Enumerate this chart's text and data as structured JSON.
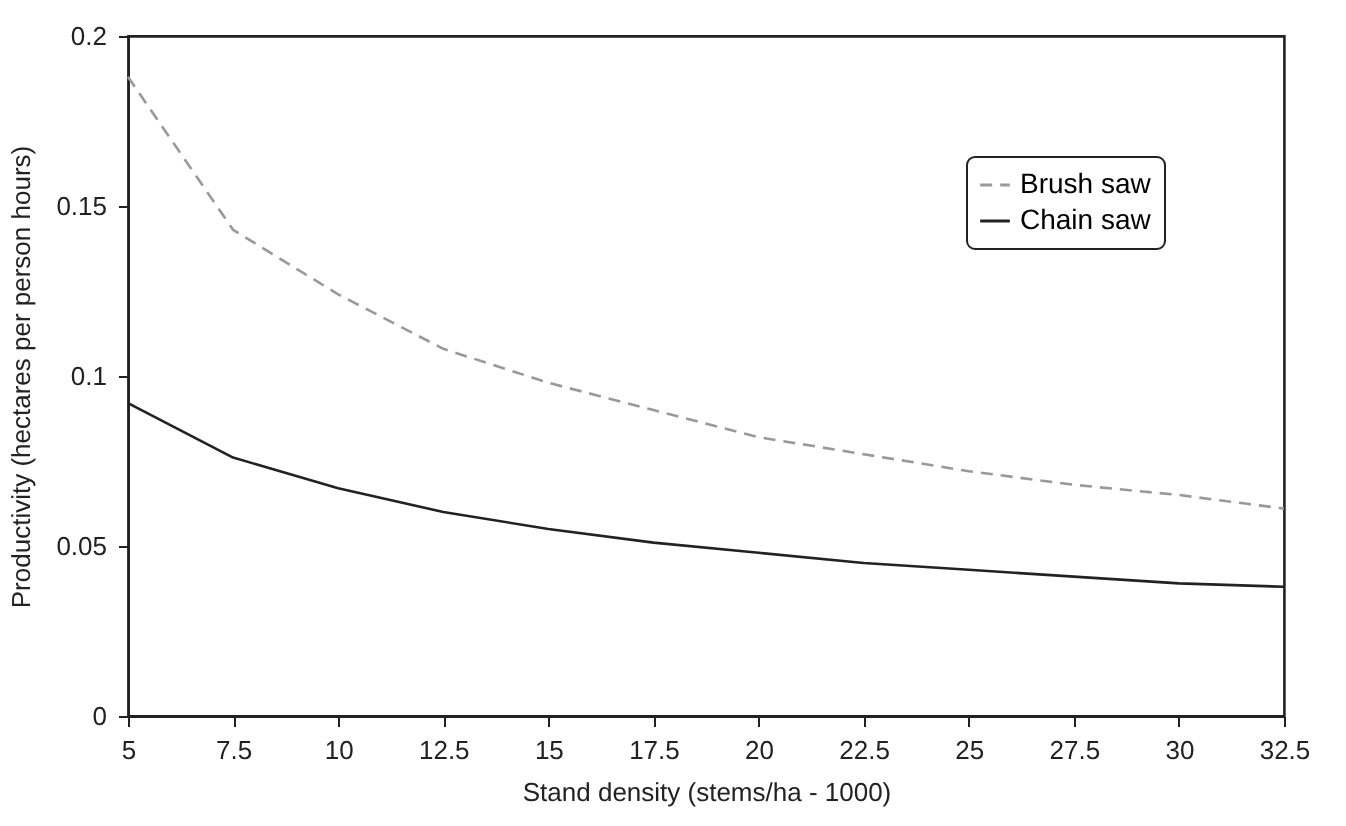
{
  "chart_data": {
    "type": "line",
    "xlabel": "Stand density (stems/ha - 1000)",
    "ylabel": "Productivity (hectares per person hours)",
    "x": [
      5,
      7.5,
      10,
      12.5,
      15,
      17.5,
      20,
      22.5,
      25,
      27.5,
      30,
      32.5
    ],
    "series": [
      {
        "name": "Brush saw",
        "color": "#999999",
        "line_style": "dashed",
        "values": [
          0.188,
          0.143,
          0.124,
          0.108,
          0.098,
          0.09,
          0.082,
          0.077,
          0.072,
          0.068,
          0.065,
          0.061
        ]
      },
      {
        "name": "Chain saw",
        "color": "#222222",
        "line_style": "solid",
        "values": [
          0.092,
          0.076,
          0.067,
          0.06,
          0.055,
          0.051,
          0.048,
          0.045,
          0.043,
          0.041,
          0.039,
          0.038
        ]
      }
    ],
    "xlim": [
      5,
      32.5
    ],
    "xticks": [
      5,
      7.5,
      10,
      12.5,
      15,
      17.5,
      20,
      22.5,
      25,
      27.5,
      30,
      32.5
    ],
    "ylim": [
      0,
      0.2
    ],
    "yticks": [
      0,
      0.05,
      0.1,
      0.15,
      0.2
    ],
    "grid": false,
    "legend": "top right",
    "marker": "none"
  }
}
